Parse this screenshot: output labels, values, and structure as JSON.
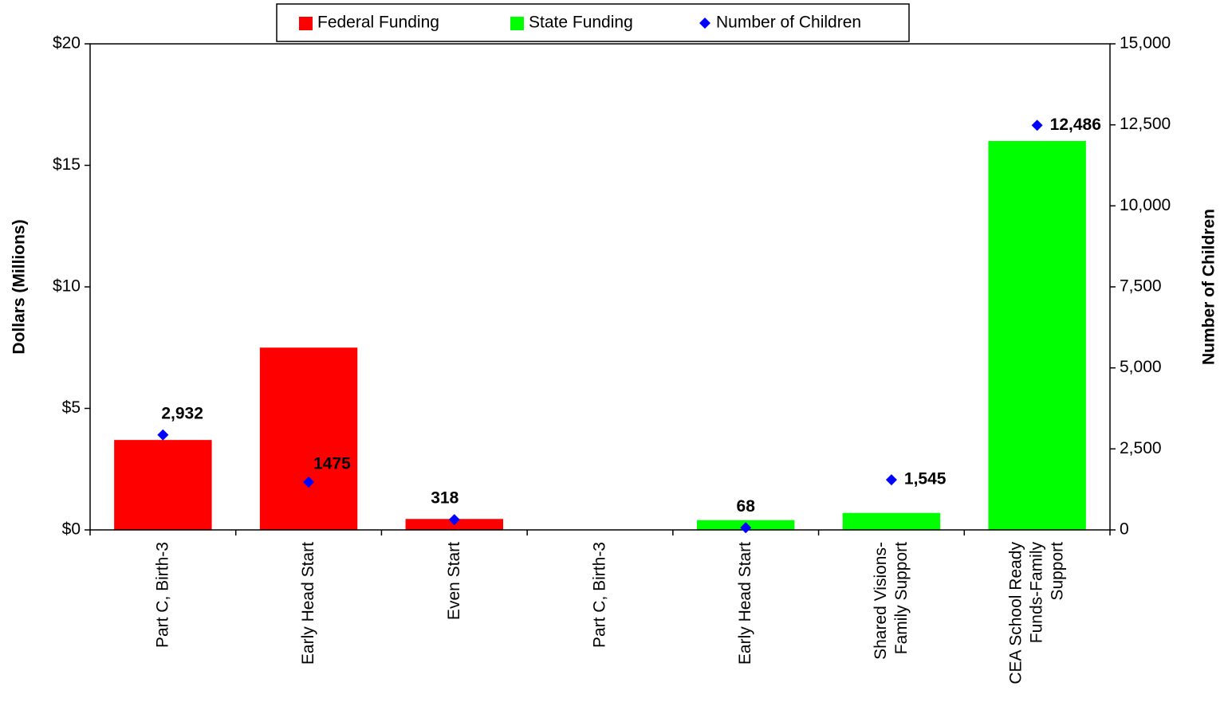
{
  "chart_data": {
    "type": "bar",
    "categories": [
      "Part C, Birth-3",
      "Early Head Start",
      "Even Start",
      "Part C, Birth-3",
      "Early Head Start",
      "Shared Visions-\nFamily Support",
      "CEA School Ready\nFunds-Family\nSupport"
    ],
    "series": [
      {
        "name": "Federal Funding",
        "color": "#ff0000",
        "values": [
          3.7,
          7.5,
          0.45,
          null,
          null,
          null,
          null
        ]
      },
      {
        "name": "State Funding",
        "color": "#00ff00",
        "values": [
          null,
          null,
          null,
          null,
          0.4,
          0.7,
          16.0
        ]
      },
      {
        "name": "Number of Children",
        "color": "#0000ff",
        "type": "scatter",
        "axis": "y2",
        "values": [
          2932,
          1475,
          318,
          null,
          68,
          1545,
          12486
        ],
        "value_labels": [
          "2,932",
          "1475",
          "318",
          null,
          "68",
          "1,545",
          "12,486"
        ]
      }
    ],
    "ylabel": "Dollars (Millions)",
    "y2label": "Number of Children",
    "ylim": [
      0,
      20
    ],
    "yticks": [
      {
        "value": 0,
        "label": "$0"
      },
      {
        "value": 5,
        "label": "$5"
      },
      {
        "value": 10,
        "label": "$10"
      },
      {
        "value": 15,
        "label": "$15"
      },
      {
        "value": 20,
        "label": "$20"
      }
    ],
    "y2lim": [
      0,
      15000
    ],
    "y2ticks": [
      0,
      {
        "value": 2500,
        "label": "2,500"
      },
      {
        "value": 5000,
        "label": "5,000"
      },
      {
        "value": 7500,
        "label": "7,500"
      },
      {
        "value": 10000,
        "label": "10,000"
      },
      {
        "value": 12500,
        "label": "12,500"
      },
      {
        "value": 15000,
        "label": "15,000"
      }
    ],
    "legend": "top",
    "grid": false
  }
}
